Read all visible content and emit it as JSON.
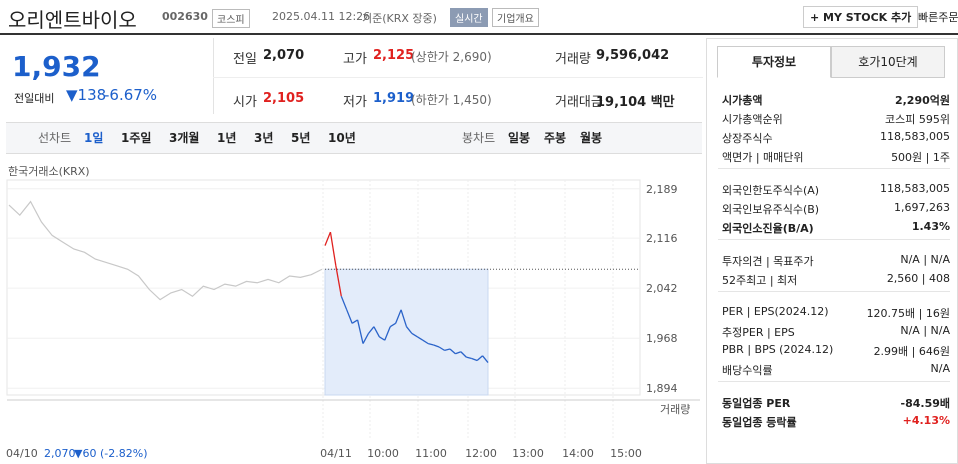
{
  "header": {
    "name": "오리엔트바이오",
    "code": "002630",
    "market": "코스피",
    "datetime": "2025.04.11 12:26",
    "basis": "기준(KRX 장중)",
    "realtime": "실시간",
    "company": "기업개요",
    "mystock": "+ MY STOCK 추가",
    "quick": "빠른주문"
  },
  "quote": {
    "price": "1,932",
    "change_label": "전일대비",
    "change": "▼138",
    "rate": "-6.67%"
  },
  "stats": [
    {
      "label": "전일",
      "value": "2,070"
    },
    {
      "label": "고가",
      "value": "2,125",
      "extra": "(상한가 2,690)"
    },
    {
      "label": "거래량",
      "value": "9,596,042"
    },
    {
      "label": "시가",
      "value": "2,105"
    },
    {
      "label": "저가",
      "value": "1,919",
      "extra": "(하한가 1,450)"
    },
    {
      "label": "거래대금",
      "value": "19,104 백만"
    }
  ],
  "tabs": {
    "line_label": "선차트",
    "line": [
      "1일",
      "1주일",
      "3개월",
      "1년",
      "3년",
      "5년",
      "10년"
    ],
    "candle_label": "봉차트",
    "candle": [
      "일봉",
      "주봉",
      "월봉"
    ]
  },
  "chart": {
    "source": "한국거래소(KRX)",
    "ylim": [
      1884,
      2202
    ],
    "yticks": [
      {
        "value": 2189,
        "label": "2,189"
      },
      {
        "value": 2116,
        "label": "2,116"
      },
      {
        "value": 2042,
        "label": "2,042"
      },
      {
        "value": 1968,
        "label": "1,968"
      },
      {
        "value": 1894,
        "label": "1,894"
      }
    ],
    "xlabels": [
      "04/11",
      "10:00",
      "11:00",
      "12:00",
      "13:00",
      "14:00",
      "15:00"
    ],
    "prev_close": 2070,
    "volume_label": "거래량",
    "prev_day": [
      2165,
      2150,
      2170,
      2140,
      2120,
      2110,
      2100,
      2095,
      2085,
      2080,
      2075,
      2070,
      2060,
      2040,
      2025,
      2035,
      2040,
      2030,
      2045,
      2040,
      2048,
      2045,
      2052,
      2050,
      2055,
      2050,
      2060,
      2058,
      2062,
      2070
    ],
    "today": [
      2105,
      2125,
      2075,
      2030,
      2010,
      1990,
      1995,
      1960,
      1975,
      1985,
      1970,
      1965,
      1985,
      1990,
      2010,
      1985,
      1975,
      1970,
      1965,
      1960,
      1958,
      1955,
      1950,
      1952,
      1945,
      1948,
      1940,
      1938,
      1935,
      1942,
      1932
    ]
  },
  "footer": {
    "date": "04/10",
    "price": "2,070",
    "change": "▼60",
    "rate": "(-2.82%)"
  },
  "panel": {
    "tabs": [
      "투자정보",
      "호가10단계"
    ],
    "sections": [
      [
        {
          "label": "시가총액",
          "value": "2,290억원"
        },
        {
          "label": "시가총액순위",
          "value": "코스피 595위"
        },
        {
          "label": "상장주식수",
          "value": "118,583,005"
        },
        {
          "label": "액면가 | 매매단위",
          "value": "500원 | 1주"
        }
      ],
      [
        {
          "label": "외국인한도주식수(A)",
          "value": "118,583,005"
        },
        {
          "label": "외국인보유주식수(B)",
          "value": "1,697,263"
        },
        {
          "label": "외국인소진율(B/A)",
          "value": "1.43%"
        }
      ],
      [
        {
          "label": "투자의견 | 목표주가",
          "value": "N/A | N/A"
        },
        {
          "label": "52주최고 | 최저",
          "value": "2,560 | 408"
        }
      ],
      [
        {
          "label": "PER | EPS(2024.12)",
          "value": "120.75배 | 16원"
        },
        {
          "label": "추정PER | EPS",
          "value": "N/A | N/A"
        },
        {
          "label": "PBR | BPS (2024.12)",
          "value": "2.99배 | 646원"
        },
        {
          "label": "배당수익률",
          "value": "N/A"
        }
      ],
      [
        {
          "label": "동일업종 PER",
          "value": "-84.59배"
        },
        {
          "label": "동일업종 등락률",
          "value": "+4.13%"
        }
      ]
    ]
  }
}
